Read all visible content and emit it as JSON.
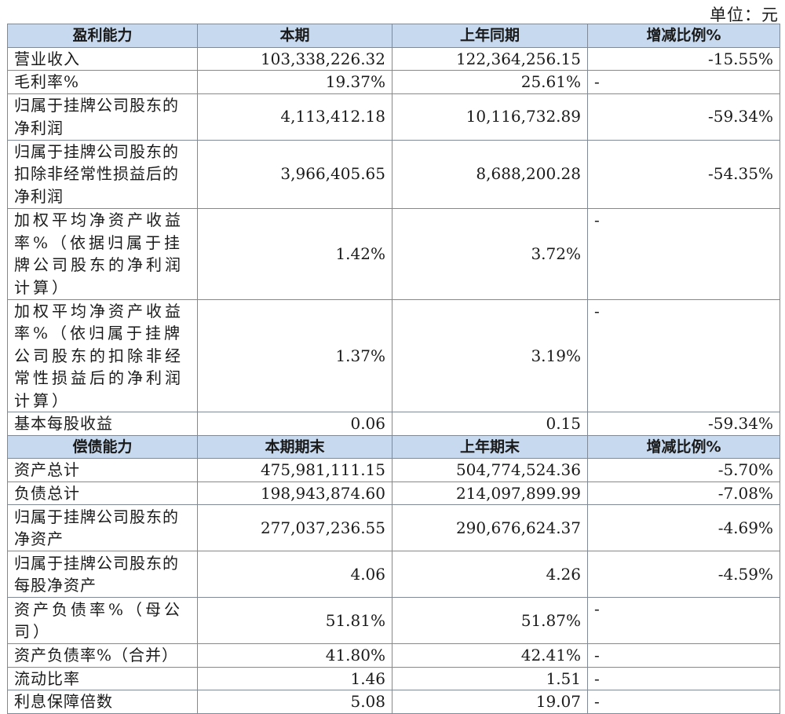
{
  "unit_label": "单位：元",
  "profitability": {
    "header": [
      "盈利能力",
      "本期",
      "上年同期",
      "增减比例%"
    ],
    "rows": [
      {
        "label": "营业收入",
        "current": "103,338,226.32",
        "prior": "122,364,256.15",
        "change": "-15.55%"
      },
      {
        "label": "毛利率%",
        "current": "19.37%",
        "prior": "25.61%",
        "change": "-"
      },
      {
        "label": "归属于挂牌公司股东的净利润",
        "current": "4,113,412.18",
        "prior": "10,116,732.89",
        "change": "-59.34%"
      },
      {
        "label": "归属于挂牌公司股东的扣除非经常性损益后的净利润",
        "current": "3,966,405.65",
        "prior": "8,688,200.28",
        "change": "-54.35%"
      },
      {
        "label": "加权平均净资产收益率%（依据归属于挂牌公司股东的净利润计算）",
        "current": "1.42%",
        "prior": "3.72%",
        "change": "-"
      },
      {
        "label": "加权平均净资产收益率%（依归属于挂牌公司股东的扣除非经常性损益后的净利润计算）",
        "current": "1.37%",
        "prior": "3.19%",
        "change": "-"
      },
      {
        "label": "基本每股收益",
        "current": "0.06",
        "prior": "0.15",
        "change": "-59.34%"
      }
    ]
  },
  "solvency": {
    "header": [
      "偿债能力",
      "本期期末",
      "上年期末",
      "增减比例%"
    ],
    "rows": [
      {
        "label": "资产总计",
        "current": "475,981,111.15",
        "prior": "504,774,524.36",
        "change": "-5.70%"
      },
      {
        "label": "负债总计",
        "current": "198,943,874.60",
        "prior": "214,097,899.99",
        "change": "-7.08%"
      },
      {
        "label": "归属于挂牌公司股东的净资产",
        "current": "277,037,236.55",
        "prior": "290,676,624.37",
        "change": "-4.69%"
      },
      {
        "label": "归属于挂牌公司股东的每股净资产",
        "current": "4.06",
        "prior": "4.26",
        "change": "-4.59%"
      },
      {
        "label": "资产负债率%（母公司）",
        "current": "51.81%",
        "prior": "51.87%",
        "change": "-"
      },
      {
        "label": "资产负债率%（合并）",
        "current": "41.80%",
        "prior": "42.41%",
        "change": "-"
      },
      {
        "label": "流动比率",
        "current": "1.46",
        "prior": "1.51",
        "change": "-"
      },
      {
        "label": "利息保障倍数",
        "current": "5.08",
        "prior": "19.07",
        "change": "-"
      }
    ]
  }
}
